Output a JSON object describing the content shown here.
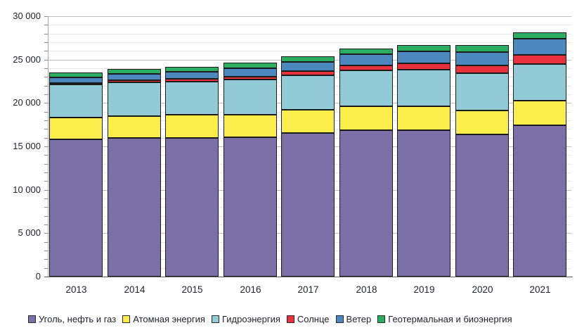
{
  "chart_data": {
    "type": "bar",
    "stacked": true,
    "categories": [
      "2013",
      "2014",
      "2015",
      "2016",
      "2017",
      "2018",
      "2019",
      "2020",
      "2021"
    ],
    "series": [
      {
        "name": "Уголь, нефть и газ",
        "color": "#7C70A8",
        "values": [
          15800,
          15950,
          16000,
          16050,
          16550,
          16900,
          16850,
          16400,
          17450
        ]
      },
      {
        "name": "Атомная энергия",
        "color": "#FBEE4B",
        "values": [
          2530,
          2570,
          2610,
          2620,
          2640,
          2700,
          2790,
          2700,
          2780
        ]
      },
      {
        "name": "Гидроэнергия",
        "color": "#92CAD8",
        "values": [
          3790,
          3880,
          3890,
          4020,
          4020,
          4170,
          4220,
          4350,
          4270
        ]
      },
      {
        "name": "Солнце",
        "color": "#E9303D",
        "values": [
          140,
          200,
          250,
          330,
          440,
          570,
          700,
          850,
          1030
        ]
      },
      {
        "name": "Ветер",
        "color": "#4C87BF",
        "values": [
          650,
          720,
          830,
          960,
          1110,
          1270,
          1420,
          1590,
          1850
        ]
      },
      {
        "name": "Геотермальная и биоэнергия",
        "color": "#2CAE62",
        "values": [
          580,
          600,
          620,
          640,
          650,
          700,
          730,
          750,
          790
        ]
      }
    ],
    "totals": [
      23490,
      23920,
      24200,
      24620,
      25410,
      26310,
      26710,
      26640,
      28170
    ],
    "title": "",
    "xlabel": "",
    "ylabel": "",
    "ylim": [
      0,
      30000
    ],
    "y_major_step": 5000,
    "y_minor_step": 1000,
    "y_tick_labels": [
      "0",
      "5 000",
      "10 000",
      "15 000",
      "20 000",
      "25 000",
      "30 000"
    ],
    "grid": true,
    "bar_outline_color": "#1b1b1b",
    "legend_position": "bottom"
  }
}
